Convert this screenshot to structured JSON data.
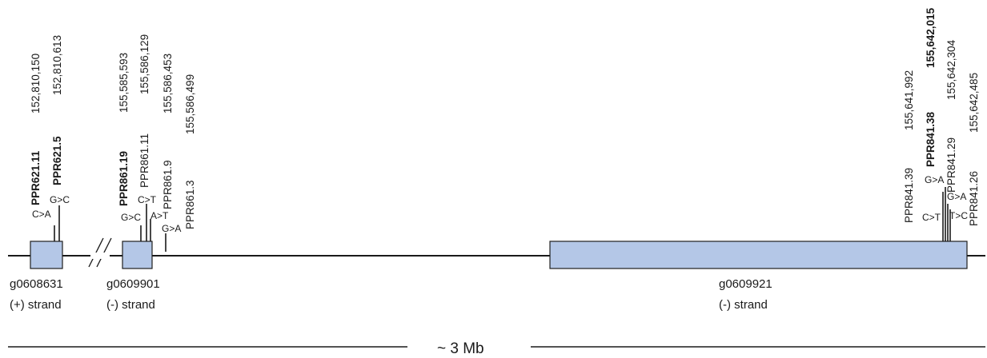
{
  "genes": [
    {
      "id": "g0608631",
      "strand": "(+) strand"
    },
    {
      "id": "g0609901",
      "strand": "(-) strand"
    },
    {
      "id": "g0609921",
      "strand": "(-) strand"
    }
  ],
  "variants": [
    {
      "name": "PPR621.11",
      "pos": "152,810,150",
      "mut": "C>A",
      "bold": true
    },
    {
      "name": "PPR621.5",
      "pos": "152,810,613",
      "mut": "G>C",
      "bold": true
    },
    {
      "name": "PPR861.19",
      "pos": "155,585,593",
      "mut": "G>C",
      "bold": true
    },
    {
      "name": "PPR861.11",
      "pos": "155,586,129",
      "mut": "C>T",
      "bold": false
    },
    {
      "name": "PPR861.9",
      "pos": "155,586,453",
      "mut": "A>T",
      "bold": false
    },
    {
      "name": "PPR861.3",
      "pos": "155,586,499",
      "mut": "G>A",
      "bold": false
    },
    {
      "name": "PPR841.39",
      "pos": "155,641,992",
      "mut": "C>T",
      "bold": false
    },
    {
      "name": "PPR841.38",
      "pos": "155,642,015",
      "mut": "G>A",
      "bold": true
    },
    {
      "name": "PPR841.29",
      "pos": "155,642,304",
      "mut": "G>A",
      "bold": false
    },
    {
      "name": "PPR841.26",
      "pos": "155,642,485",
      "mut": "T>C",
      "bold": false
    }
  ],
  "scale_label": "~ 3 Mb",
  "colors": {
    "exon_fill": "#b4c7e7",
    "exon_stroke": "#1f1f1f",
    "line": "#1a1a1a"
  }
}
